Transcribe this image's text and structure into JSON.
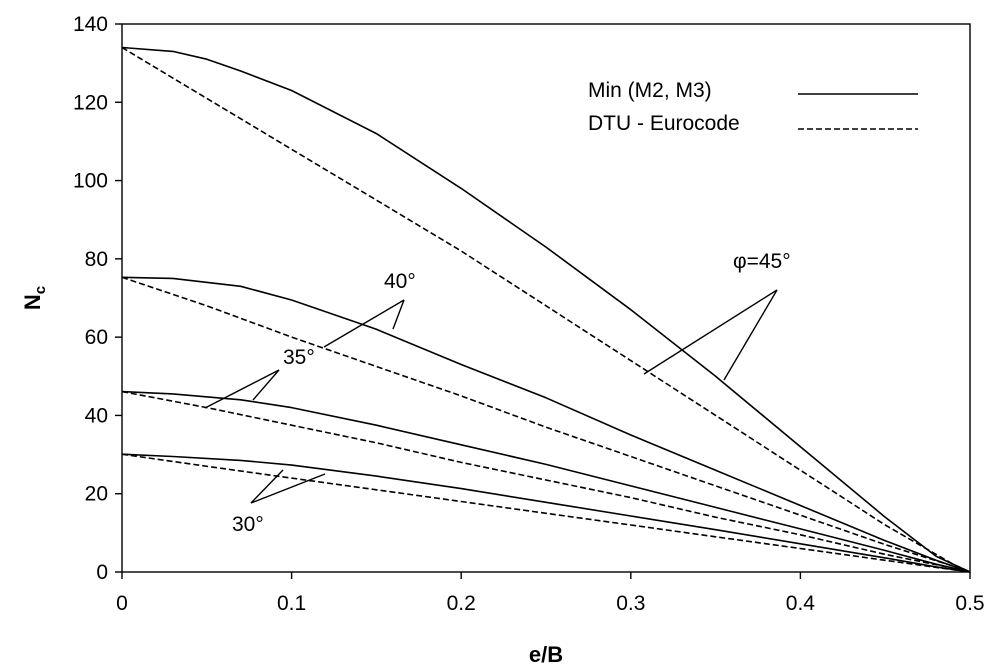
{
  "chart_data": {
    "type": "line",
    "xlabel": "e/B",
    "ylabel": "Nc",
    "ylabel_main": "N",
    "ylabel_sub": "c",
    "xlim": [
      0,
      0.5
    ],
    "ylim": [
      0,
      140
    ],
    "xticks": [
      "0",
      "0.1",
      "0.2",
      "0.3",
      "0.4",
      "0.5"
    ],
    "yticks": [
      "0",
      "20",
      "40",
      "60",
      "80",
      "100",
      "120",
      "140"
    ],
    "grid": false,
    "legend_position": "top-right",
    "legend": [
      {
        "label": "Min (M2, M3)",
        "style": "solid"
      },
      {
        "label": "DTU - Eurocode",
        "style": "dashed"
      }
    ],
    "annotations": [
      {
        "text": "φ=45°",
        "series": "45"
      },
      {
        "text": "40°",
        "series": "40"
      },
      {
        "text": "35°",
        "series": "35"
      },
      {
        "text": "30°",
        "series": "30"
      }
    ],
    "series": [
      {
        "angle": "45",
        "style": "solid",
        "x": [
          0,
          0.03,
          0.05,
          0.07,
          0.1,
          0.15,
          0.2,
          0.25,
          0.3,
          0.35,
          0.4,
          0.45,
          0.48,
          0.5
        ],
        "y": [
          134,
          133,
          131,
          128,
          123,
          112,
          98,
          83,
          67,
          50,
          32,
          14,
          4,
          0
        ]
      },
      {
        "angle": "45",
        "style": "dashed",
        "x": [
          0,
          0.05,
          0.1,
          0.15,
          0.2,
          0.25,
          0.3,
          0.35,
          0.4,
          0.45,
          0.49,
          0.5
        ],
        "y": [
          134,
          121,
          108,
          95,
          82,
          68,
          54,
          40,
          26,
          12,
          2,
          0
        ]
      },
      {
        "angle": "40",
        "style": "solid",
        "x": [
          0,
          0.03,
          0.07,
          0.1,
          0.15,
          0.2,
          0.25,
          0.3,
          0.35,
          0.4,
          0.45,
          0.48,
          0.5
        ],
        "y": [
          75.3,
          75,
          73,
          69.5,
          62,
          53,
          44.5,
          35,
          26,
          17,
          8,
          3,
          0
        ]
      },
      {
        "angle": "40",
        "style": "dashed",
        "x": [
          0,
          0.05,
          0.1,
          0.15,
          0.2,
          0.25,
          0.3,
          0.35,
          0.4,
          0.45,
          0.49,
          0.5
        ],
        "y": [
          75.3,
          68,
          60,
          52.5,
          45,
          37,
          29.5,
          22,
          14.5,
          7,
          1.5,
          0
        ]
      },
      {
        "angle": "35",
        "style": "solid",
        "x": [
          0,
          0.03,
          0.07,
          0.1,
          0.15,
          0.2,
          0.25,
          0.3,
          0.35,
          0.4,
          0.45,
          0.48,
          0.5
        ],
        "y": [
          46.1,
          45.5,
          44,
          42,
          37.5,
          32.5,
          27.5,
          22,
          16.5,
          11,
          5.5,
          2,
          0
        ]
      },
      {
        "angle": "35",
        "style": "dashed",
        "x": [
          0,
          0.05,
          0.1,
          0.15,
          0.2,
          0.25,
          0.3,
          0.35,
          0.4,
          0.45,
          0.49,
          0.5
        ],
        "y": [
          46.1,
          42,
          37.5,
          33,
          28,
          23.5,
          19,
          14,
          9.5,
          4.5,
          1,
          0
        ]
      },
      {
        "angle": "30",
        "style": "solid",
        "x": [
          0,
          0.03,
          0.07,
          0.1,
          0.15,
          0.2,
          0.25,
          0.3,
          0.35,
          0.4,
          0.45,
          0.48,
          0.5
        ],
        "y": [
          30.1,
          29.5,
          28.5,
          27.3,
          24.5,
          21.3,
          17.8,
          14.3,
          10.8,
          7.2,
          3.6,
          1.3,
          0
        ]
      },
      {
        "angle": "30",
        "style": "dashed",
        "x": [
          0,
          0.05,
          0.1,
          0.15,
          0.2,
          0.25,
          0.3,
          0.35,
          0.4,
          0.45,
          0.49,
          0.5
        ],
        "y": [
          30.1,
          27,
          24,
          21,
          18,
          15,
          12,
          9,
          6,
          3,
          0.6,
          0
        ]
      }
    ]
  }
}
